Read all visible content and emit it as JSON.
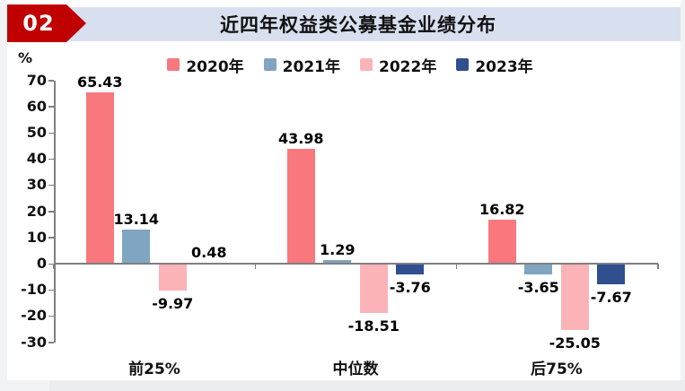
{
  "header": {
    "badge": "02",
    "title": "近四年权益类公募基金业绩分布"
  },
  "chart_data": {
    "type": "bar",
    "title": "近四年权益类公募基金业绩分布",
    "categories": [
      "前25%",
      "中位数",
      "后75%"
    ],
    "series": [
      {
        "name": "2020年",
        "color": "#F8787E",
        "values": [
          65.43,
          43.98,
          16.82
        ]
      },
      {
        "name": "2021年",
        "color": "#7FA5C1",
        "values": [
          13.14,
          1.29,
          -3.65
        ]
      },
      {
        "name": "2022年",
        "color": "#FBB3B7",
        "values": [
          -9.97,
          -18.51,
          -25.05
        ]
      },
      {
        "name": "2023年",
        "color": "#2F4F8F",
        "values": [
          0.48,
          -3.76,
          -7.67
        ]
      }
    ],
    "xlabel": "",
    "ylabel": "%",
    "ylim": [
      -30,
      70
    ],
    "yticks": [
      70,
      60,
      50,
      40,
      30,
      20,
      10,
      0,
      -10,
      -20,
      -30
    ],
    "grid": false,
    "legend_position": "top",
    "value_labels_decimals": 2
  },
  "colors": {
    "badge_bg": "#C00000",
    "banner_bg": "#D8E0F0",
    "axis": "#7f7f7f"
  }
}
